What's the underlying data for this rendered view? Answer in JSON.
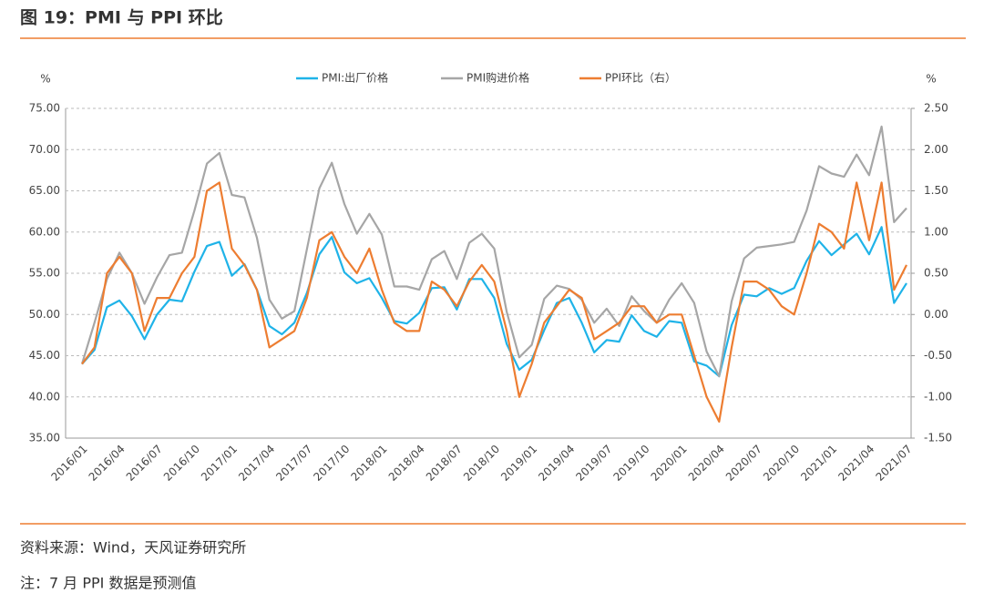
{
  "chart_data": {
    "type": "line",
    "title": "图 19：PMI 与 PPI 环比",
    "y_label": "%",
    "y2_label": "%",
    "source": "资料来源：Wind，天风证券研究所",
    "note": "注：7 月 PPI 数据是预测值",
    "categories": [
      "2016/01",
      null,
      null,
      "2016/04",
      null,
      null,
      "2016/07",
      null,
      null,
      "2016/10",
      null,
      null,
      "2017/01",
      null,
      null,
      "2017/04",
      null,
      null,
      "2017/07",
      null,
      null,
      "2017/10",
      null,
      null,
      "2018/01",
      null,
      null,
      "2018/04",
      null,
      null,
      "2018/07",
      null,
      null,
      "2018/10",
      null,
      null,
      "2019/01",
      null,
      null,
      "2019/04",
      null,
      null,
      "2019/07",
      null,
      null,
      "2019/10",
      null,
      null,
      "2020/01",
      null,
      null,
      "2020/04",
      null,
      null,
      "2020/07",
      null,
      null,
      "2020/10",
      null,
      null,
      "2021/01",
      null,
      null,
      "2021/04",
      null,
      null,
      "2021/07"
    ],
    "series": [
      {
        "name": "PMI:出厂价格",
        "color": "#1fb3e8",
        "values": [
          44.0,
          45.7,
          50.9,
          51.7,
          49.8,
          47.0,
          50.0,
          51.8,
          51.6,
          55.2,
          58.3,
          58.8,
          54.7,
          56.1,
          53.0,
          48.6,
          47.6,
          49.0,
          52.6,
          57.3,
          59.4,
          55.1,
          53.8,
          54.4,
          52.0,
          49.2,
          48.9,
          50.2,
          53.2,
          53.3,
          50.6,
          54.3,
          54.3,
          52.0,
          46.4,
          43.3,
          44.5,
          48.1,
          51.4,
          52.0,
          49.0,
          45.4,
          46.9,
          46.7,
          49.9,
          48.0,
          47.3,
          49.2,
          49.0,
          44.3,
          43.8,
          42.5,
          48.7,
          52.4,
          52.2,
          53.2,
          52.5,
          53.2,
          56.5,
          58.9,
          57.2,
          58.5,
          59.8,
          57.3,
          60.6,
          51.4,
          53.8
        ]
      },
      {
        "name": "PMI购进价格",
        "color": "#a6a6a6",
        "values": [
          44.0,
          49.0,
          54.3,
          57.5,
          55.0,
          51.3,
          54.5,
          57.2,
          57.5,
          62.6,
          68.3,
          69.6,
          64.5,
          64.2,
          59.3,
          51.8,
          49.5,
          50.4,
          57.9,
          65.3,
          68.4,
          63.4,
          59.8,
          62.2,
          59.7,
          53.4,
          53.4,
          53.0,
          56.7,
          57.7,
          54.3,
          58.7,
          59.8,
          58.0,
          50.3,
          44.8,
          46.3,
          51.9,
          53.5,
          53.1,
          51.8,
          49.0,
          50.7,
          48.6,
          52.2,
          50.4,
          49.0,
          51.8,
          53.8,
          51.4,
          45.5,
          42.5,
          51.6,
          56.8,
          58.1,
          58.3,
          58.5,
          58.8,
          62.6,
          68.0,
          67.1,
          66.7,
          69.4,
          66.9,
          72.8,
          61.2,
          62.9
        ]
      },
      {
        "name": "PPI环比（右）",
        "color": "#ed7d31",
        "axis": "y2",
        "values": [
          -0.6,
          -0.4,
          0.5,
          0.7,
          0.5,
          -0.2,
          0.2,
          0.2,
          0.5,
          0.7,
          1.5,
          1.6,
          0.8,
          0.6,
          0.3,
          -0.4,
          -0.3,
          -0.2,
          0.2,
          0.9,
          1.0,
          0.7,
          0.5,
          0.8,
          0.3,
          -0.1,
          -0.2,
          -0.2,
          0.4,
          0.3,
          0.1,
          0.4,
          0.6,
          0.4,
          -0.2,
          -1.0,
          -0.6,
          -0.1,
          0.1,
          0.3,
          0.2,
          -0.3,
          -0.2,
          -0.1,
          0.1,
          0.1,
          -0.1,
          0.0,
          0.0,
          -0.5,
          -1.0,
          -1.3,
          -0.4,
          0.4,
          0.4,
          0.3,
          0.1,
          0.0,
          0.5,
          1.1,
          1.0,
          0.8,
          1.6,
          0.9,
          1.6,
          0.3,
          0.6
        ]
      }
    ],
    "ylim": [
      35,
      75
    ],
    "yticks": [
      {
        "value": 35,
        "label": "35.00"
      },
      {
        "value": 40,
        "label": "40.00"
      },
      {
        "value": 45,
        "label": "45.00"
      },
      {
        "value": 50,
        "label": "50.00"
      },
      {
        "value": 55,
        "label": "55.00"
      },
      {
        "value": 60,
        "label": "60.00"
      },
      {
        "value": 65,
        "label": "65.00"
      },
      {
        "value": 70,
        "label": "70.00"
      },
      {
        "value": 75,
        "label": "75.00"
      }
    ],
    "y2lim": [
      -1.5,
      2.5
    ],
    "y2ticks": [
      {
        "value": -1.5,
        "label": "-1.50"
      },
      {
        "value": -1,
        "label": "-1.00"
      },
      {
        "value": -0.5,
        "label": "-0.50"
      },
      {
        "value": 0,
        "label": "0.00"
      },
      {
        "value": 0.5,
        "label": "0.50"
      },
      {
        "value": 1,
        "label": "1.00"
      },
      {
        "value": 1.5,
        "label": "1.50"
      },
      {
        "value": 2,
        "label": "2.00"
      },
      {
        "value": 2.5,
        "label": "2.50"
      }
    ],
    "grid": true,
    "legend": "top"
  }
}
